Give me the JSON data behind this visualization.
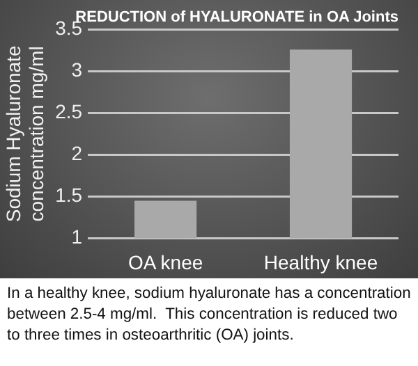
{
  "chart_data": {
    "type": "bar",
    "title": "REDUCTION of HYALURONATE in OA Joints",
    "ylabel": "Sodium Hyaluronate concentration mg/ml",
    "categories": [
      "OA knee",
      "Healthy knee"
    ],
    "values": [
      1.45,
      3.26
    ],
    "color": "#a9a9a9",
    "ylim": [
      1,
      3.5
    ],
    "yticks": [
      1,
      1.5,
      2,
      2.5,
      3,
      3.5
    ],
    "grid": "y",
    "annotations": [
      "In a healthy knee, sodium hyaluronate has a concentration between 2.5-4 mg/ml.  This concentration is reduced two to three times in osteoarthritic (OA) joints."
    ]
  }
}
